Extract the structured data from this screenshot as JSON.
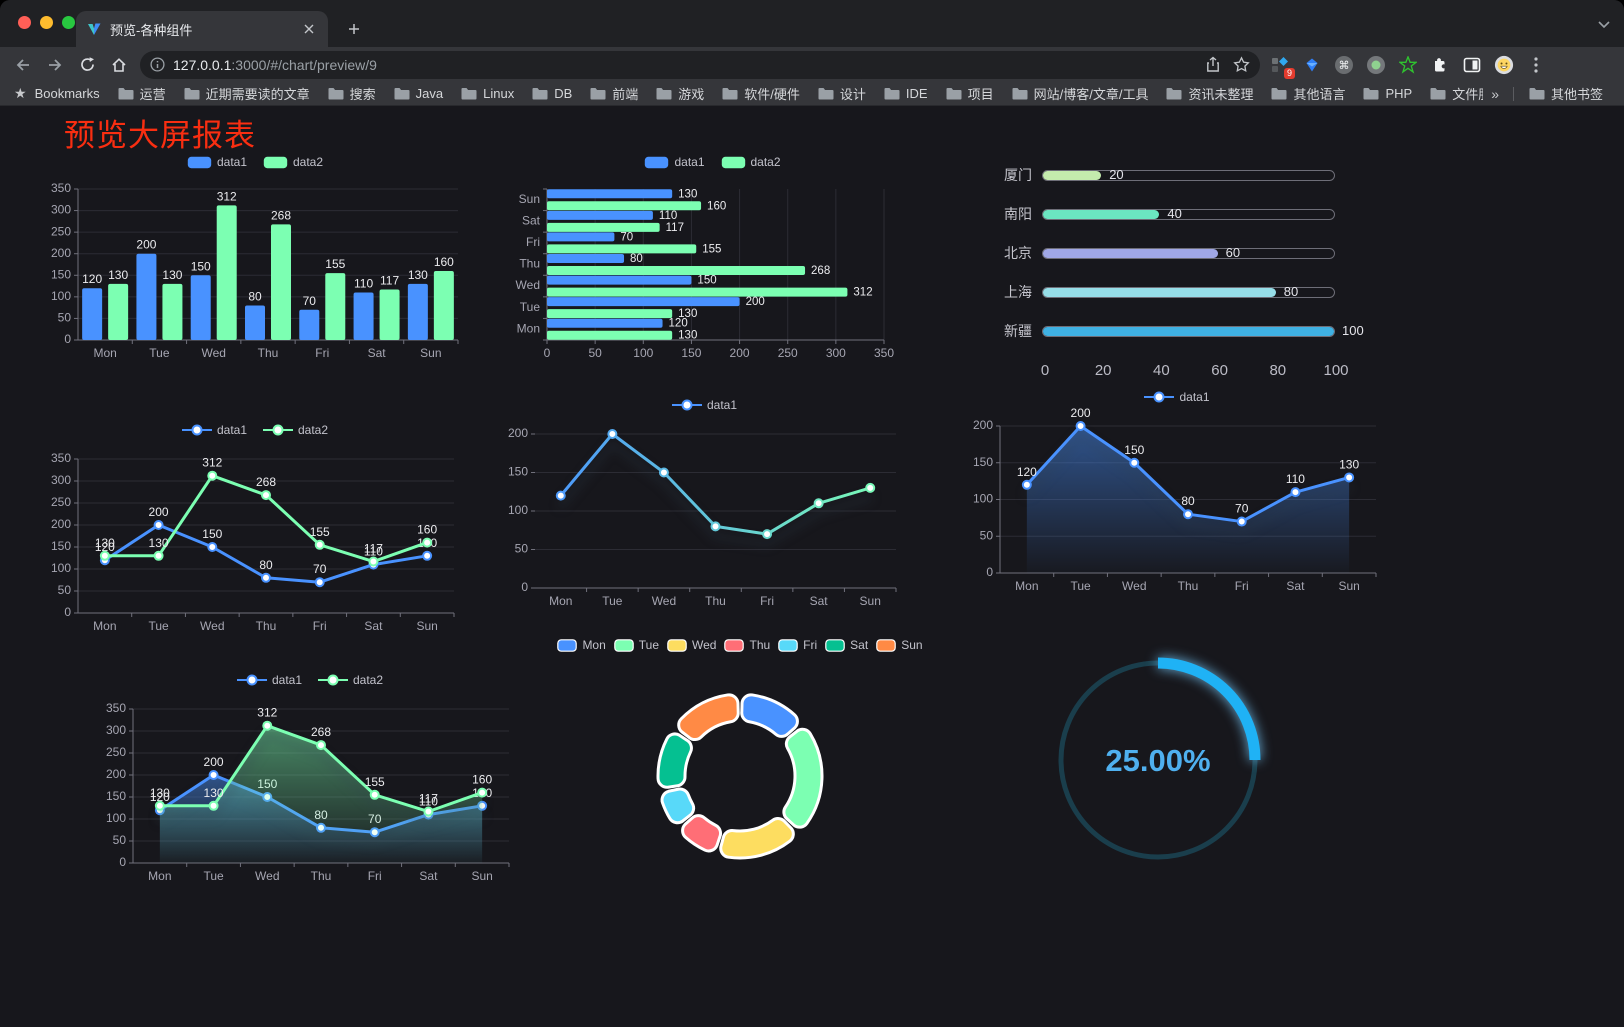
{
  "browser": {
    "tab_title": "预览-各种组件",
    "url_host": "127.0.0.1",
    "url_rest": ":3000/#/chart/preview/9",
    "bookmarks_label": "Bookmarks",
    "bookmarks": [
      "运营",
      "近期需要读的文章",
      "搜索",
      "Java",
      "Linux",
      "DB",
      "前端",
      "游戏",
      "软件/硬件",
      "设计",
      "IDE",
      "项目",
      "网站/博客/文章/工具",
      "资讯未整理",
      "其他语言",
      "PHP",
      "文件服务器"
    ],
    "bookmarks_overflow": "»",
    "other_bookmarks": "其他书签",
    "extension_badge": "9",
    "traffic_colors": {
      "close": "#ff5f57",
      "minimize": "#febc2e",
      "zoom": "#28c840"
    }
  },
  "page": {
    "title": "预览大屏报表",
    "title_color": "#f92e11",
    "background": "#17171c"
  },
  "chart_data": [
    {
      "id": "bar-vertical",
      "type": "bar",
      "categories": [
        "Mon",
        "Tue",
        "Wed",
        "Thu",
        "Fri",
        "Sat",
        "Sun"
      ],
      "series": [
        {
          "name": "data1",
          "color": "#4992ff",
          "values": [
            120,
            200,
            150,
            80,
            70,
            110,
            130
          ]
        },
        {
          "name": "data2",
          "color": "#7cffb2",
          "values": [
            130,
            130,
            312,
            268,
            155,
            117,
            160
          ]
        }
      ],
      "ylim": [
        0,
        350
      ],
      "ystep": 50,
      "labels": true,
      "legend_position": "top"
    },
    {
      "id": "bar-horizontal",
      "type": "bar-horizontal",
      "categories": [
        "Mon",
        "Tue",
        "Wed",
        "Thu",
        "Fri",
        "Sat",
        "Sun"
      ],
      "series": [
        {
          "name": "data1",
          "color": "#4992ff",
          "values": [
            120,
            200,
            150,
            80,
            70,
            110,
            130
          ]
        },
        {
          "name": "data2",
          "color": "#7cffb2",
          "values": [
            130,
            130,
            312,
            268,
            155,
            117,
            160
          ]
        }
      ],
      "xlim": [
        0,
        350
      ],
      "xstep": 50,
      "labels": true,
      "legend_position": "top"
    },
    {
      "id": "progress",
      "type": "progress",
      "items": [
        {
          "label": "厦门",
          "value": 20,
          "color": "#c4ebad"
        },
        {
          "label": "南阳",
          "value": 40,
          "color": "#6be6c1"
        },
        {
          "label": "北京",
          "value": 60,
          "color": "#a0a7e6"
        },
        {
          "label": "上海",
          "value": 80,
          "color": "#96dee8"
        },
        {
          "label": "新疆",
          "value": 100,
          "color": "#3fb1e3"
        }
      ],
      "axis_ticks": [
        0,
        20,
        40,
        60,
        80,
        100
      ],
      "xlim": [
        0,
        100
      ]
    },
    {
      "id": "line-dual",
      "type": "line",
      "categories": [
        "Mon",
        "Tue",
        "Wed",
        "Thu",
        "Fri",
        "Sat",
        "Sun"
      ],
      "series": [
        {
          "name": "data1",
          "color": "#4992ff",
          "values": [
            120,
            200,
            150,
            80,
            70,
            110,
            130
          ],
          "area": false
        },
        {
          "name": "data2",
          "color": "#7cffb2",
          "values": [
            130,
            130,
            312,
            268,
            155,
            117,
            160
          ],
          "area": false
        }
      ],
      "ylim": [
        0,
        350
      ],
      "ystep": 50,
      "labels": true,
      "y_axis_line": true,
      "shadow": false
    },
    {
      "id": "line-gradient",
      "type": "line",
      "categories": [
        "Mon",
        "Tue",
        "Wed",
        "Thu",
        "Fri",
        "Sat",
        "Sun"
      ],
      "series": [
        {
          "name": "data1",
          "color": "#4992ff",
          "values": [
            120,
            200,
            150,
            80,
            70,
            110,
            130
          ],
          "area": false
        }
      ],
      "gradient": [
        "#4992ff",
        "#7cffb2"
      ],
      "ylim": [
        0,
        200
      ],
      "ystep": 50,
      "labels": false,
      "y_axis_line": false,
      "shadow": true
    },
    {
      "id": "line-area-single",
      "type": "line",
      "categories": [
        "Mon",
        "Tue",
        "Wed",
        "Thu",
        "Fri",
        "Sat",
        "Sun"
      ],
      "series": [
        {
          "name": "data1",
          "color": "#4992ff",
          "values": [
            120,
            200,
            150,
            80,
            70,
            110,
            130
          ],
          "area": true
        }
      ],
      "ylim": [
        0,
        200
      ],
      "ystep": 50,
      "labels": true,
      "y_axis_line": true,
      "shadow": true
    },
    {
      "id": "line-area-dual",
      "type": "line",
      "categories": [
        "Mon",
        "Tue",
        "Wed",
        "Thu",
        "Fri",
        "Sat",
        "Sun"
      ],
      "series": [
        {
          "name": "data1",
          "color": "#4992ff",
          "values": [
            120,
            200,
            150,
            80,
            70,
            110,
            130
          ],
          "area": true
        },
        {
          "name": "data2",
          "color": "#7cffb2",
          "values": [
            130,
            130,
            312,
            268,
            155,
            117,
            160
          ],
          "area": true
        }
      ],
      "ylim": [
        0,
        350
      ],
      "ystep": 50,
      "labels": true,
      "y_axis_line": true,
      "shadow": true
    },
    {
      "id": "pie-rose",
      "type": "pie",
      "labels": [
        "Mon",
        "Tue",
        "Wed",
        "Thu",
        "Fri",
        "Sat",
        "Sun"
      ],
      "values": [
        120,
        200,
        150,
        80,
        70,
        110,
        130
      ],
      "colors": [
        "#4992ff",
        "#7cffb2",
        "#fddd60",
        "#ff6e76",
        "#58d9f9",
        "#05c091",
        "#ff8a45"
      ],
      "border_color": "#ffffff"
    },
    {
      "id": "gauge",
      "type": "gauge",
      "value": 25,
      "text": "25.00%",
      "progress_color": "#1fb2f5",
      "track_color": "#1a3e4c",
      "text_color": "#4fb0ef"
    }
  ]
}
